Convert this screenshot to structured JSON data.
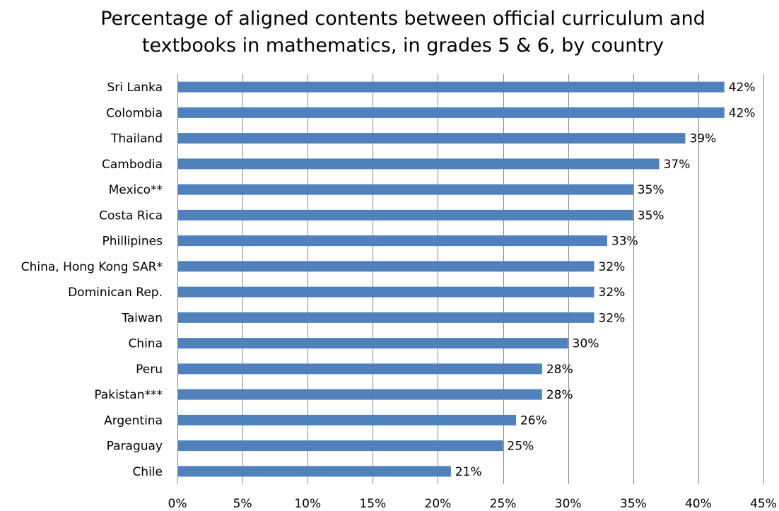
{
  "chart_data": {
    "type": "bar",
    "orientation": "horizontal",
    "title_line1": "Percentage of aligned contents between official curriculum and",
    "title_line2": "textbooks in mathematics, in grades 5 & 6, by country",
    "categories": [
      "Sri Lanka",
      "Colombia",
      "Thailand",
      "Cambodia",
      "Mexico**",
      "Costa Rica",
      "Phillipines",
      "China, Hong Kong SAR*",
      "Dominican Rep.",
      "Taiwan",
      "China",
      "Peru",
      "Pakistan***",
      "Argentina",
      "Paraguay",
      "Chile"
    ],
    "values": [
      42,
      42,
      39,
      37,
      35,
      35,
      33,
      32,
      32,
      32,
      30,
      28,
      28,
      26,
      25,
      21
    ],
    "value_labels": [
      "42%",
      "42%",
      "39%",
      "37%",
      "35%",
      "35%",
      "33%",
      "32%",
      "32%",
      "32%",
      "30%",
      "28%",
      "28%",
      "26%",
      "25%",
      "21%"
    ],
    "xlim": [
      0,
      45
    ],
    "xticks": [
      0,
      5,
      10,
      15,
      20,
      25,
      30,
      35,
      40,
      45
    ],
    "xtick_labels": [
      "0%",
      "5%",
      "10%",
      "15%",
      "20%",
      "25%",
      "30%",
      "35%",
      "40%",
      "45%"
    ],
    "grid": "vertical",
    "legend": "none",
    "bar_color": "#4F81BD",
    "grid_color": "#868686"
  }
}
